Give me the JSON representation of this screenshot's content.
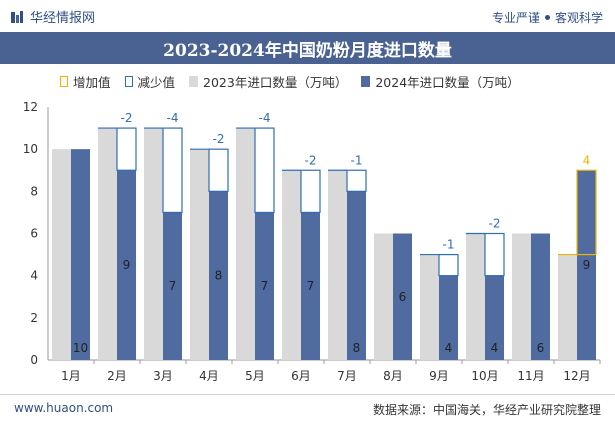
{
  "header": {
    "brand": "华经情报网",
    "tagline": [
      "专业严谨",
      "客观科学"
    ]
  },
  "chart_data": {
    "type": "bar",
    "title": "2023-2024年中国奶粉月度进口数量",
    "categories": [
      "1月",
      "2月",
      "3月",
      "4月",
      "5月",
      "6月",
      "7月",
      "8月",
      "9月",
      "10月",
      "11月",
      "12月"
    ],
    "series": [
      {
        "name": "2023年进口数量（万吨）",
        "values": [
          10,
          11,
          11,
          10,
          11,
          9,
          9,
          6,
          5,
          6,
          6,
          5
        ],
        "color": "#d9d9d9"
      },
      {
        "name": "2024年进口数量（万吨）",
        "values": [
          10,
          9,
          7,
          8,
          7,
          7,
          8,
          6,
          4,
          4,
          6,
          9
        ],
        "color": "#4f6ba0"
      }
    ],
    "change": {
      "increase_label": "增加值",
      "decrease_label": "减少值",
      "increase_color": "#f0b400",
      "decrease_color": "#2f6db5",
      "labels": [
        "",
        "-2",
        "-4",
        "-2",
        "-4",
        "-2",
        "-1",
        "",
        "-1",
        "-2",
        "",
        "4"
      ]
    },
    "bar_labels": [
      "10",
      "9",
      "7",
      "8",
      "7",
      "7",
      "8",
      "6",
      "4",
      "4",
      "6",
      "9"
    ],
    "yticks": [
      "0",
      "2",
      "4",
      "6",
      "8",
      "10",
      "12"
    ],
    "ylim": [
      0,
      12
    ],
    "grid": false,
    "legend_position": "top"
  },
  "footer": {
    "website": "www.huaon.com",
    "source": "数据来源：中国海关，华经产业研究院整理"
  }
}
